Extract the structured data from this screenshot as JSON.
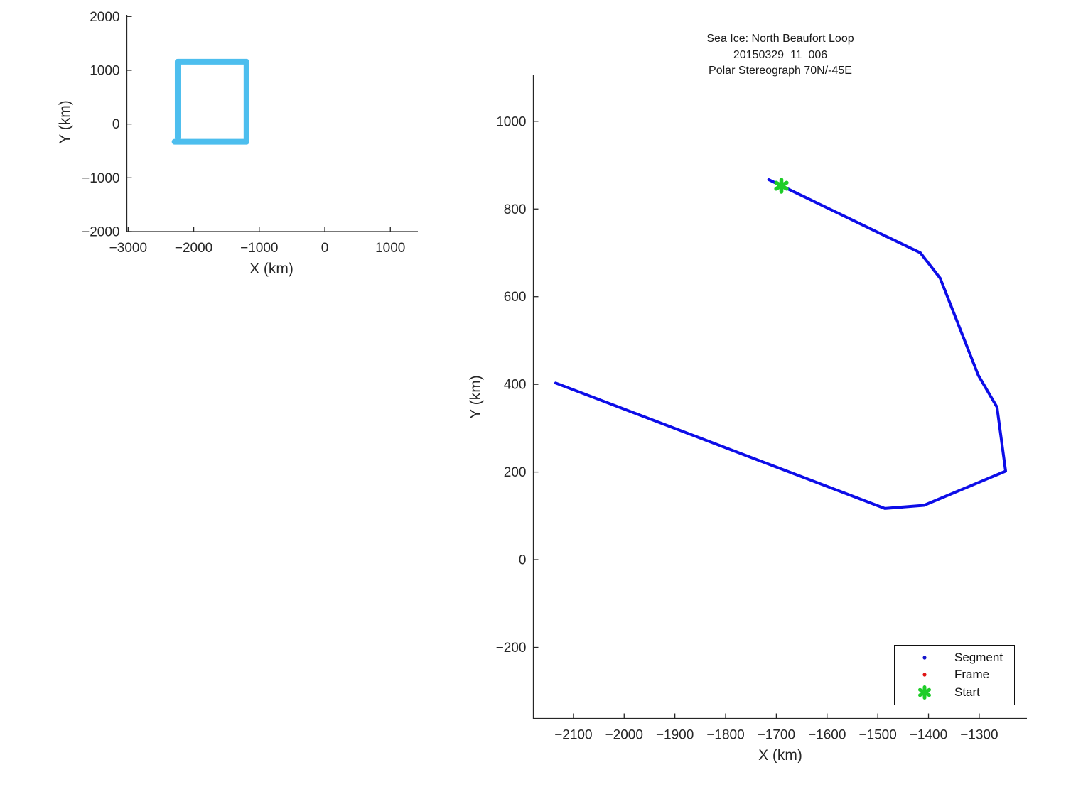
{
  "colors": {
    "background": "#ffffff",
    "axis": "#262626",
    "tick_label": "#262626",
    "segment_blue": "#0d0de8",
    "frame_red": "#e01414",
    "start_green": "#1ecd28",
    "coverage_blue": "#4DBEEE"
  },
  "chart_data": [
    {
      "id": "overview",
      "panel": "coverage-overview-plot",
      "type": "line",
      "xlabel": "X (km)",
      "ylabel": "Y (km)",
      "xlim": [
        -3020,
        1420
      ],
      "ylim": [
        -2000,
        2030
      ],
      "xticks": [
        -3000,
        -2000,
        -1000,
        0,
        1000
      ],
      "xtick_labels": [
        "−3000",
        "−2000",
        "−1000",
        "0",
        "1000"
      ],
      "yticks": [
        -2000,
        -1000,
        0,
        1000,
        2000
      ],
      "ytick_labels": [
        "−2000",
        "−1000",
        "0",
        "1000",
        "2000"
      ],
      "grid": false,
      "series": [
        {
          "name": "coverage-outline",
          "color": "#4DBEEE",
          "width": 8,
          "points": [
            [
              -2245,
              -261
            ],
            [
              -2245,
              1160
            ],
            [
              -1195,
              1160
            ],
            [
              -1195,
              -330
            ],
            [
              -2292,
              -330
            ]
          ]
        }
      ]
    },
    {
      "id": "trajectory",
      "panel": "sea-ice-trajectory-plot",
      "type": "line",
      "title_lines": [
        "Sea Ice: North Beaufort Loop",
        "20150329_11_006",
        "Polar Stereograph 70N/-45E"
      ],
      "xlabel": "X (km)",
      "ylabel": "Y (km)",
      "xlim": [
        -2179,
        -1206
      ],
      "ylim": [
        -362,
        1105
      ],
      "xticks": [
        -2100,
        -2000,
        -1900,
        -1800,
        -1700,
        -1600,
        -1500,
        -1400,
        -1300
      ],
      "xtick_labels": [
        "−2100",
        "−2000",
        "−1900",
        "−1800",
        "−1700",
        "−1600",
        "−1500",
        "−1400",
        "−1300"
      ],
      "yticks": [
        -200,
        0,
        200,
        400,
        600,
        800,
        1000
      ],
      "ytick_labels": [
        "−200",
        "0",
        "200",
        "400",
        "600",
        "800",
        "1000"
      ],
      "grid": false,
      "series": [
        {
          "name": "segment-track",
          "color": "#0d0de8",
          "width": 4,
          "points": [
            [
              -1715,
              867
            ],
            [
              -1690,
              853
            ],
            [
              -1416,
              700
            ],
            [
              -1377,
              642
            ],
            [
              -1302,
              421
            ],
            [
              -1265,
              348
            ],
            [
              -1248,
              202
            ],
            [
              -1409,
              124
            ],
            [
              -1486,
              117
            ],
            [
              -2135,
              403
            ]
          ]
        }
      ],
      "markers": [
        {
          "name": "start-marker",
          "shape": "asterisk",
          "color": "#1ecd28",
          "x": -1690,
          "y": 853,
          "radius": 8.5,
          "stroke_width": 5.5
        }
      ],
      "legend": {
        "position": "southeast",
        "entries": [
          {
            "label": "Segment",
            "marker": "dot",
            "color": "#1414cc"
          },
          {
            "label": "Frame",
            "marker": "dot",
            "color": "#e01414"
          },
          {
            "label": "Start",
            "marker": "asterisk",
            "color": "#1ecd28"
          }
        ]
      }
    }
  ]
}
